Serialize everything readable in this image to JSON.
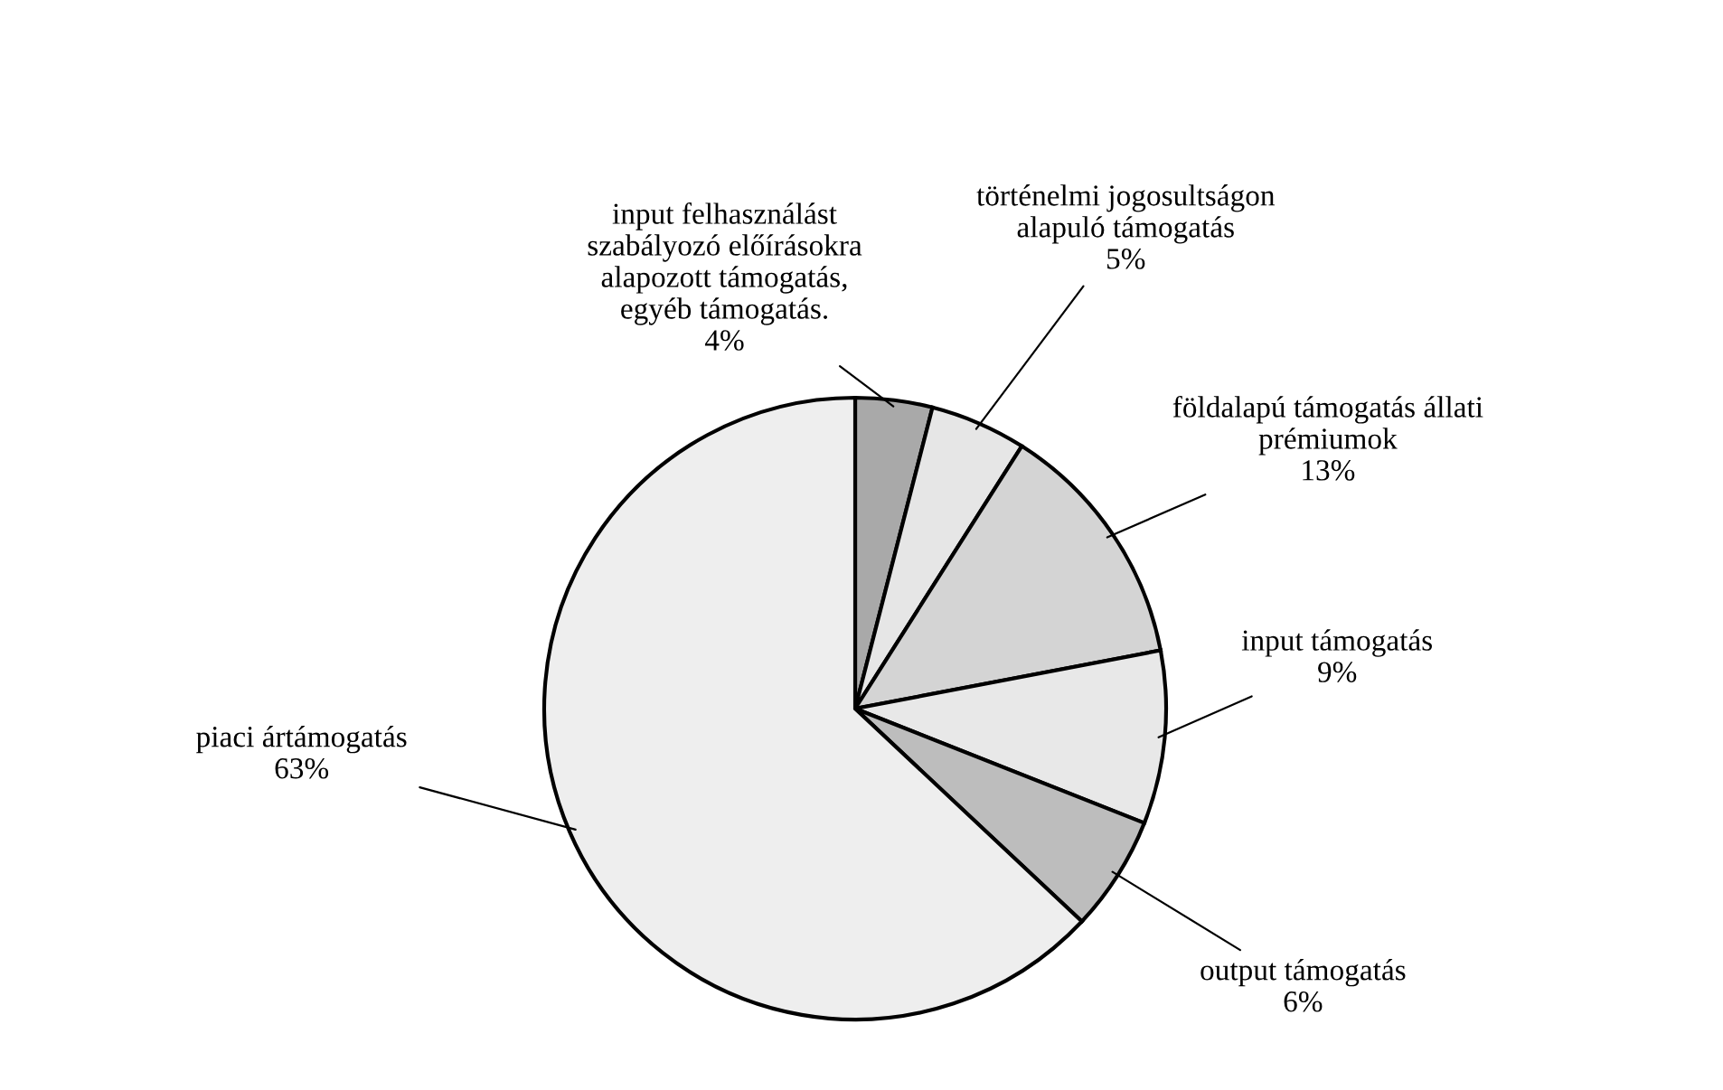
{
  "chart_data": {
    "type": "pie",
    "categories": [
      "input felhasználást\nszabályozó előírásokra\nalapozott támogatás,\negyéb támogatás.",
      "történelmi jogosultságon\nalapuló támogatás",
      "földalapú támogatás állati\nprémiumok",
      "input támogatás",
      "output támogatás",
      "piaci ártámogatás"
    ],
    "values": [
      4,
      5,
      13,
      9,
      6,
      63
    ],
    "value_labels": [
      "4%",
      "5%",
      "13%",
      "9%",
      "6%",
      "63%"
    ],
    "colors": [
      "#a9a9a9",
      "#e6e6e6",
      "#d4d4d4",
      "#e8e8e8",
      "#bdbdbd",
      "#eeeeee"
    ]
  }
}
